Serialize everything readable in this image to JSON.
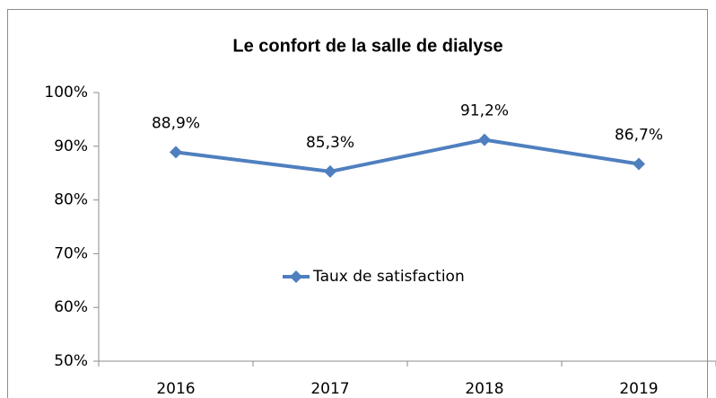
{
  "chart_data": {
    "type": "line",
    "title": "Le confort de la salle de dialyse",
    "categories": [
      "2016",
      "2017",
      "2018",
      "2019"
    ],
    "series": [
      {
        "name": "Taux de satisfaction",
        "color": "#4f7fbf",
        "values": [
          88.9,
          85.3,
          91.2,
          86.7
        ],
        "value_labels": [
          "88,9%",
          "85,3%",
          "91,2%",
          "86,7%"
        ]
      }
    ],
    "ylim": [
      50,
      100
    ],
    "yticks": [
      {
        "value": 50,
        "label": "50%"
      },
      {
        "value": 60,
        "label": "60%"
      },
      {
        "value": 70,
        "label": "70%"
      },
      {
        "value": 80,
        "label": "80%"
      },
      {
        "value": 90,
        "label": "90%"
      },
      {
        "value": 100,
        "label": "100%"
      }
    ],
    "grid": false,
    "legend": "center"
  }
}
